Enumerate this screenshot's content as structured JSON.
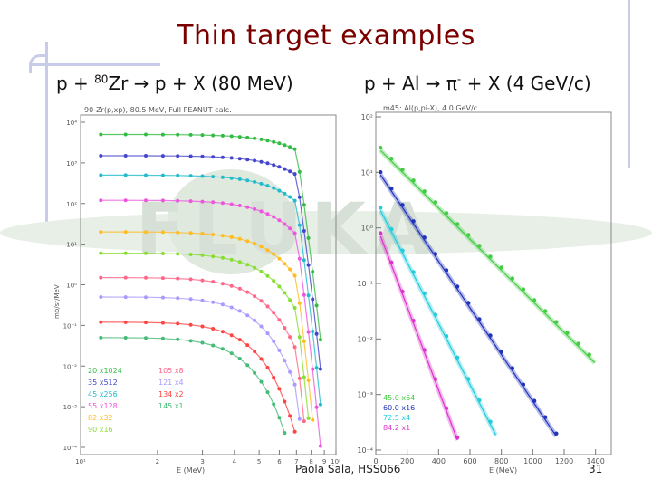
{
  "slide": {
    "title": "Thin target examples",
    "left_heading": {
      "pre": "p + ",
      "sup": "80",
      "post": "Zr → p + X (80 MeV)"
    },
    "right_heading": {
      "pre": "p + Al → π",
      "sup": "-",
      "post": " + X (4 GeV/c)"
    },
    "footer_author": "Paola Sala, HSS066",
    "page_number": "31",
    "watermark": "FLUKA"
  },
  "chart_data": [
    {
      "type": "scatter",
      "header": "90-Zr(p,xp), 80.5 MeV, Full PEANUT calc.",
      "xlabel": "E (MeV)",
      "ylabel": "mb/sr/MeV",
      "xscale": "log",
      "yscale": "log",
      "x_ticks": [
        "10¹",
        "2",
        "3",
        "4",
        "5",
        "6",
        "7",
        "8",
        "9",
        "10²"
      ],
      "y_ticks": [
        "10⁴",
        "10³",
        "10²",
        "10¹",
        "10⁰",
        "10⁻¹",
        "10⁻²",
        "10⁻³",
        "10⁻⁴"
      ],
      "legend": [
        "20 x1024",
        "35 x512",
        "45 x256",
        "55 x128",
        "82 x32",
        "90 x16",
        "105 x8",
        "121 x4",
        "134 x2",
        "145 x1"
      ],
      "series": [
        {
          "label": "20 x1024",
          "color": "#33bb44",
          "y0": 5000,
          "fall": 0.2
        },
        {
          "label": "35 x512",
          "color": "#4444cc",
          "y0": 1500,
          "fall": 0.25
        },
        {
          "label": "45 x256",
          "color": "#22bbcc",
          "y0": 500,
          "fall": 0.35
        },
        {
          "label": "55 x128",
          "color": "#ee55dd",
          "y0": 120,
          "fall": 0.45
        },
        {
          "label": "82 x32",
          "color": "#ffbb22",
          "y0": 20,
          "fall": 0.6
        },
        {
          "label": "90 x16",
          "color": "#88dd33",
          "y0": 6,
          "fall": 0.75
        },
        {
          "label": "105 x8",
          "color": "#ff6688",
          "y0": 1.5,
          "fall": 0.95
        },
        {
          "label": "121 x4",
          "color": "#aa99ff",
          "y0": 0.5,
          "fall": 1.2
        },
        {
          "label": "134 x2",
          "color": "#ff4444",
          "y0": 0.12,
          "fall": 1.5
        },
        {
          "label": "145 x1",
          "color": "#44bb77",
          "y0": 0.05,
          "fall": 1.8
        }
      ]
    },
    {
      "type": "scatter",
      "header": "m45: Al(p,pi-X), 4.0 GeV/c",
      "xlabel": "E (MeV)",
      "xscale": "linear",
      "yscale": "log",
      "xlim": [
        0,
        1500
      ],
      "x_ticks": [
        "0",
        "200",
        "400",
        "600",
        "800",
        "1000",
        "1200",
        "1400"
      ],
      "y_ticks": [
        "10²",
        "10¹",
        "10⁰",
        "10⁻¹",
        "10⁻²",
        "10⁻³",
        "10⁻⁴"
      ],
      "legend": [
        "45.0 x64",
        "60.0 x16",
        "72.5 x4",
        "84.2 x1"
      ],
      "series": [
        {
          "label": "45.0 x64",
          "color": "#44cc44",
          "y0": 30,
          "slope": 0.0028
        },
        {
          "label": "60.0 x16",
          "color": "#2233bb",
          "y0": 12,
          "slope": 0.0042
        },
        {
          "label": "72.5 x4",
          "color": "#22ccdd",
          "y0": 3,
          "slope": 0.0055
        },
        {
          "label": "84.2 x1",
          "color": "#dd33cc",
          "y0": 1.2,
          "slope": 0.0075
        }
      ]
    }
  ]
}
